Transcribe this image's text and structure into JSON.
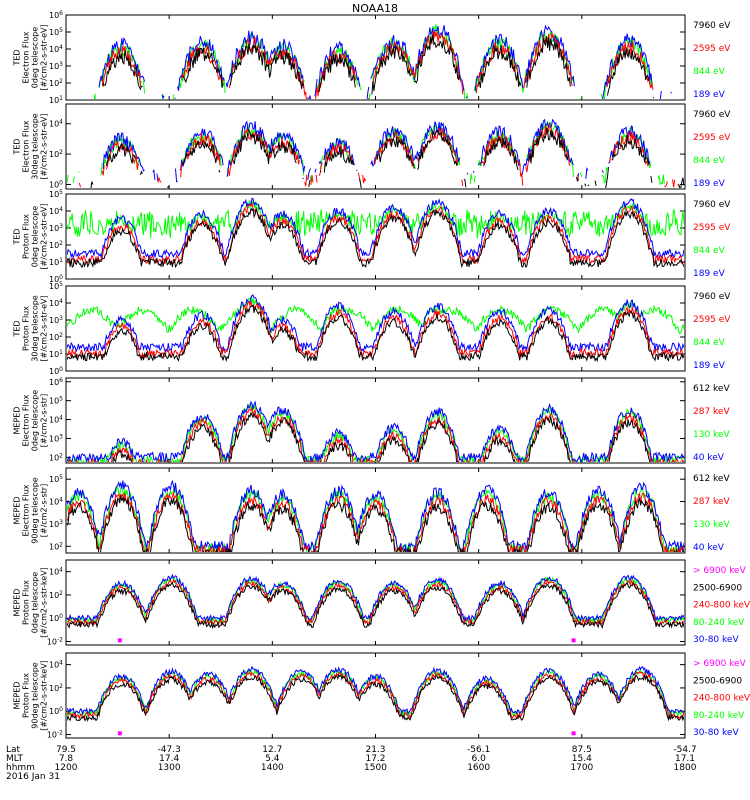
{
  "title": "NOAA18",
  "colors": {
    "black": "#000000",
    "red": "#ff0000",
    "green": "#00ff00",
    "blue": "#0000ff",
    "magenta": "#ff00ff"
  },
  "x_ticks": [
    "1200",
    "1300",
    "1400",
    "1500",
    "1600",
    "1700",
    "1800"
  ],
  "footer": {
    "labels": [
      "Lat",
      "MLT",
      "hhmm"
    ],
    "date": "2016 Jan 31",
    "lat": [
      "79.5",
      "-47.3",
      "12.7",
      "21.3",
      "-56.1",
      "87.5",
      "-54.7"
    ],
    "mlt": [
      "7.8",
      "17.4",
      "5.4",
      "17.2",
      "6.0",
      "15.4",
      "17.1"
    ],
    "hhmm": [
      "1200",
      "1300",
      "1400",
      "1500",
      "1600",
      "1700",
      "1800"
    ]
  },
  "chart_data": [
    {
      "type": "line",
      "panel": "TED electron 0deg",
      "ylabel": [
        "TED",
        "Electron Flux",
        "0deg telescope",
        "[#/cm2-s-str-eV]"
      ],
      "yticks": [
        "10^1",
        "10^2",
        "10^3",
        "10^4",
        "10^5",
        "10^6"
      ],
      "ylim": [
        1,
        6
      ],
      "series": [
        {
          "name": "7960 eV",
          "color": "#000000"
        },
        {
          "name": "2595 eV",
          "color": "#ff0000"
        },
        {
          "name": "844 eV",
          "color": "#00ff00"
        },
        {
          "name": "189 eV",
          "color": "#0000ff"
        }
      ],
      "features": [
        {
          "x": 0.09,
          "peak": 4.2
        },
        {
          "x": 0.22,
          "peak": 4.4
        },
        {
          "x": 0.3,
          "peak": 4.7
        },
        {
          "x": 0.35,
          "peak": 4.2
        },
        {
          "x": 0.44,
          "peak": 4.0
        },
        {
          "x": 0.53,
          "peak": 4.5
        },
        {
          "x": 0.6,
          "peak": 5.2
        },
        {
          "x": 0.7,
          "peak": 4.5
        },
        {
          "x": 0.78,
          "peak": 5.0
        },
        {
          "x": 0.91,
          "peak": 4.5
        }
      ],
      "floor": 1.1,
      "noise": "sparse"
    },
    {
      "type": "line",
      "panel": "TED electron 30deg",
      "ylabel": [
        "TED",
        "Electron Flux",
        "30deg telescope",
        "[#/cm2-s-str-eV]"
      ],
      "yticks": [
        "10^0",
        "10^2",
        "10^4"
      ],
      "ylim": [
        -0.3,
        5.3
      ],
      "series": [
        {
          "name": "7960 eV",
          "color": "#000000"
        },
        {
          "name": "2595 eV",
          "color": "#ff0000"
        },
        {
          "name": "844 eV",
          "color": "#00ff00"
        },
        {
          "name": "189 eV",
          "color": "#0000ff"
        }
      ],
      "features": [
        {
          "x": 0.09,
          "peak": 3.0
        },
        {
          "x": 0.22,
          "peak": 3.4
        },
        {
          "x": 0.3,
          "peak": 3.8
        },
        {
          "x": 0.35,
          "peak": 3.2
        },
        {
          "x": 0.44,
          "peak": 2.8
        },
        {
          "x": 0.53,
          "peak": 3.5
        },
        {
          "x": 0.6,
          "peak": 3.8
        },
        {
          "x": 0.7,
          "peak": 3.4
        },
        {
          "x": 0.78,
          "peak": 4.0
        },
        {
          "x": 0.91,
          "peak": 3.5
        }
      ],
      "floor": 0.6,
      "noise": "sparse"
    },
    {
      "type": "line",
      "panel": "TED proton 0deg",
      "ylabel": [
        "TED",
        "Proton Flux",
        "0deg telescope",
        "[#/cm2-s-str-eV]"
      ],
      "yticks": [
        "10^0",
        "10^1",
        "10^2",
        "10^3",
        "10^4",
        "10^5"
      ],
      "ylim": [
        0,
        5
      ],
      "series": [
        {
          "name": "7960 eV",
          "color": "#000000"
        },
        {
          "name": "2595 eV",
          "color": "#ff0000"
        },
        {
          "name": "844 eV",
          "color": "#00ff00"
        },
        {
          "name": "189 eV",
          "color": "#0000ff"
        }
      ],
      "features": [
        {
          "x": 0.09,
          "peak": 3.5
        },
        {
          "x": 0.22,
          "peak": 3.8
        },
        {
          "x": 0.3,
          "peak": 4.6
        },
        {
          "x": 0.35,
          "peak": 3.8
        },
        {
          "x": 0.44,
          "peak": 4.0
        },
        {
          "x": 0.53,
          "peak": 4.2
        },
        {
          "x": 0.6,
          "peak": 4.5
        },
        {
          "x": 0.7,
          "peak": 3.8
        },
        {
          "x": 0.78,
          "peak": 4.0
        },
        {
          "x": 0.91,
          "peak": 4.5
        }
      ],
      "floor": 1.5,
      "noise": "dense"
    },
    {
      "type": "line",
      "panel": "TED proton 30deg",
      "ylabel": [
        "TED",
        "Proton Flux",
        "30deg telescope",
        "[#/cm2-s-str-eV]"
      ],
      "yticks": [
        "10^0",
        "10^1",
        "10^2",
        "10^3",
        "10^4",
        "10^5"
      ],
      "ylim": [
        0,
        5
      ],
      "series": [
        {
          "name": "7960 eV",
          "color": "#000000"
        },
        {
          "name": "2595 eV",
          "color": "#ff0000"
        },
        {
          "name": "844 eV",
          "color": "#00ff00"
        },
        {
          "name": "189 eV",
          "color": "#0000ff"
        }
      ],
      "features": [
        {
          "x": 0.09,
          "peak": 3.0
        },
        {
          "x": 0.22,
          "peak": 3.3
        },
        {
          "x": 0.3,
          "peak": 4.3
        },
        {
          "x": 0.35,
          "peak": 3.0
        },
        {
          "x": 0.44,
          "peak": 3.8
        },
        {
          "x": 0.53,
          "peak": 3.5
        },
        {
          "x": 0.6,
          "peak": 3.8
        },
        {
          "x": 0.7,
          "peak": 3.5
        },
        {
          "x": 0.78,
          "peak": 3.6
        },
        {
          "x": 0.91,
          "peak": 4.0
        }
      ],
      "floor": 1.4,
      "noise": "arcs"
    },
    {
      "type": "line",
      "panel": "MEPED electron 0deg",
      "ylabel": [
        "MEPED",
        "Electron Flux",
        "0deg telescope",
        "[#/cm2-s-str]"
      ],
      "yticks": [
        "10^2",
        "10^3",
        "10^4",
        "10^5",
        "10^6"
      ],
      "ylim": [
        1.7,
        6.2
      ],
      "series": [
        {
          "name": "612 keV",
          "color": "#000000"
        },
        {
          "name": "287 keV",
          "color": "#ff0000"
        },
        {
          "name": "130 keV",
          "color": "#00ff00"
        },
        {
          "name": "40 keV",
          "color": "#0000ff"
        }
      ],
      "features": [
        {
          "x": 0.09,
          "peak": 2.8
        },
        {
          "x": 0.22,
          "peak": 4.2
        },
        {
          "x": 0.3,
          "peak": 4.8
        },
        {
          "x": 0.35,
          "peak": 4.5
        },
        {
          "x": 0.44,
          "peak": 3.3
        },
        {
          "x": 0.53,
          "peak": 3.6
        },
        {
          "x": 0.6,
          "peak": 4.4
        },
        {
          "x": 0.7,
          "peak": 3.5
        },
        {
          "x": 0.78,
          "peak": 4.6
        },
        {
          "x": 0.91,
          "peak": 4.5
        }
      ],
      "floor": 2.0,
      "noise": "meped"
    },
    {
      "type": "line",
      "panel": "MEPED electron 90deg",
      "ylabel": [
        "MEPED",
        "Electron Flux",
        "90deg telescope",
        "[#/cm2-s-str]"
      ],
      "yticks": [
        "10^2",
        "10^3",
        "10^4",
        "10^5"
      ],
      "ylim": [
        1.7,
        5.5
      ],
      "series": [
        {
          "name": "612 keV",
          "color": "#000000"
        },
        {
          "name": "287 keV",
          "color": "#ff0000"
        },
        {
          "name": "130 keV",
          "color": "#00ff00"
        },
        {
          "name": "40 keV",
          "color": "#0000ff"
        }
      ],
      "features": [
        {
          "x": 0.02,
          "peak": 4.4
        },
        {
          "x": 0.09,
          "peak": 4.7
        },
        {
          "x": 0.17,
          "peak": 4.7
        },
        {
          "x": 0.3,
          "peak": 4.5
        },
        {
          "x": 0.35,
          "peak": 4.3
        },
        {
          "x": 0.44,
          "peak": 4.5
        },
        {
          "x": 0.5,
          "peak": 4.3
        },
        {
          "x": 0.6,
          "peak": 4.4
        },
        {
          "x": 0.68,
          "peak": 4.5
        },
        {
          "x": 0.78,
          "peak": 4.4
        },
        {
          "x": 0.86,
          "peak": 4.5
        },
        {
          "x": 0.93,
          "peak": 4.6
        }
      ],
      "floor": 2.0,
      "noise": "bumps"
    },
    {
      "type": "line",
      "panel": "MEPED proton 0deg",
      "ylabel": [
        "MEPED",
        "Proton Flux",
        "0deg telescope",
        "[#/cm2-s-str-keV]"
      ],
      "yticks": [
        "10^-2",
        "10^0",
        "10^2",
        "10^4"
      ],
      "ylim": [
        -2.3,
        5.0
      ],
      "series": [
        {
          "name": "> 6900 keV",
          "color": "#ff00ff"
        },
        {
          "name": "2500-6900",
          "color": "#000000"
        },
        {
          "name": "240-800 keV",
          "color": "#ff0000"
        },
        {
          "name": "80-240 keV",
          "color": "#00ff00"
        },
        {
          "name": "30-80 keV",
          "color": "#0000ff"
        }
      ],
      "features": [
        {
          "x": 0.09,
          "peak": 3.0
        },
        {
          "x": 0.17,
          "peak": 3.5
        },
        {
          "x": 0.3,
          "peak": 3.4
        },
        {
          "x": 0.35,
          "peak": 3.0
        },
        {
          "x": 0.44,
          "peak": 3.2
        },
        {
          "x": 0.53,
          "peak": 3.0
        },
        {
          "x": 0.6,
          "peak": 3.3
        },
        {
          "x": 0.7,
          "peak": 3.0
        },
        {
          "x": 0.78,
          "peak": 3.5
        },
        {
          "x": 0.91,
          "peak": 3.5
        }
      ],
      "floor": 0.0,
      "noise": "proton"
    },
    {
      "type": "line",
      "panel": "MEPED proton 90deg",
      "ylabel": [
        "MEPED",
        "Proton Flux",
        "90deg telescope",
        "[#/cm2-s-str-keV]"
      ],
      "yticks": [
        "10^-2",
        "10^0",
        "10^2",
        "10^4"
      ],
      "ylim": [
        -2.3,
        5.0
      ],
      "series": [
        {
          "name": "> 6900 keV",
          "color": "#ff00ff"
        },
        {
          "name": "2500-6900",
          "color": "#000000"
        },
        {
          "name": "240-800 keV",
          "color": "#ff0000"
        },
        {
          "name": "80-240 keV",
          "color": "#00ff00"
        },
        {
          "name": "30-80 keV",
          "color": "#0000ff"
        }
      ],
      "features": [
        {
          "x": 0.09,
          "peak": 3.0
        },
        {
          "x": 0.17,
          "peak": 3.4
        },
        {
          "x": 0.23,
          "peak": 3.2
        },
        {
          "x": 0.3,
          "peak": 3.6
        },
        {
          "x": 0.38,
          "peak": 3.4
        },
        {
          "x": 0.44,
          "peak": 3.6
        },
        {
          "x": 0.5,
          "peak": 3.0
        },
        {
          "x": 0.6,
          "peak": 3.5
        },
        {
          "x": 0.68,
          "peak": 2.8
        },
        {
          "x": 0.78,
          "peak": 3.5
        },
        {
          "x": 0.86,
          "peak": 3.2
        },
        {
          "x": 0.93,
          "peak": 3.6
        }
      ],
      "floor": 0.0,
      "noise": "proton"
    }
  ]
}
